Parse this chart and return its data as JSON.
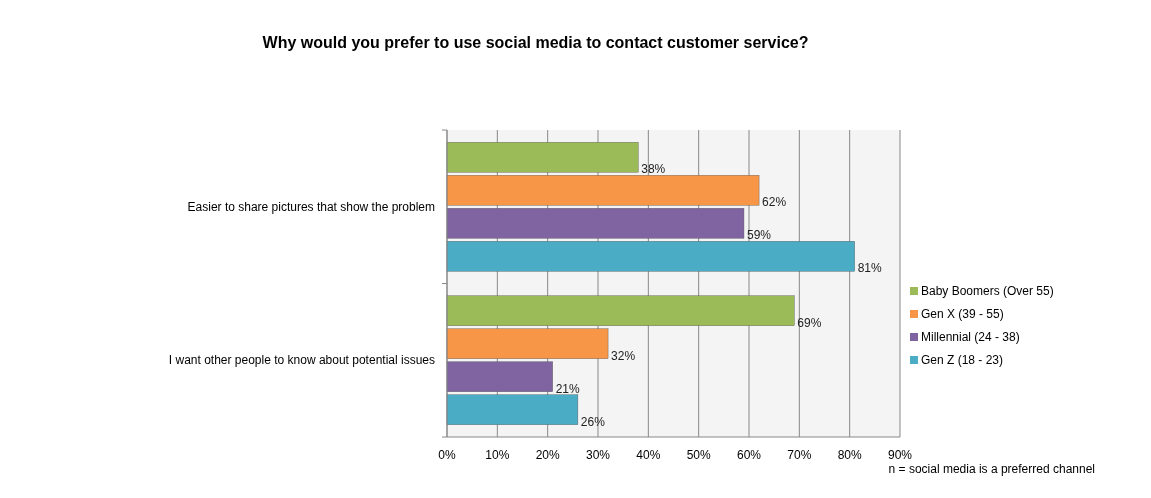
{
  "chart_data": {
    "type": "bar",
    "orientation": "horizontal",
    "title": "Why would you prefer to use social media to contact customer service?",
    "categories": [
      "Easier to share pictures that show the problem",
      "I want other people to know about potential issues"
    ],
    "series": [
      {
        "name": "Baby Boomers (Over 55)",
        "color": "#9bbb59",
        "values": [
          38,
          69
        ],
        "value_labels": [
          "38%",
          "69%"
        ]
      },
      {
        "name": "Gen X (39 - 55)",
        "color": "#f79646",
        "values": [
          62,
          32
        ],
        "value_labels": [
          "62%",
          "32%"
        ]
      },
      {
        "name": "Millennial (24 - 38)",
        "color": "#8064a2",
        "values": [
          59,
          21
        ],
        "value_labels": [
          "59%",
          "21%"
        ]
      },
      {
        "name": "Gen Z (18 - 23)",
        "color": "#4bacc6",
        "values": [
          81,
          26
        ],
        "value_labels": [
          "81%",
          "26%"
        ]
      }
    ],
    "xlim": [
      0,
      90
    ],
    "xticks": [
      {
        "value": 0,
        "label": "0%"
      },
      {
        "value": 10,
        "label": "10%"
      },
      {
        "value": 20,
        "label": "20%"
      },
      {
        "value": 30,
        "label": "30%"
      },
      {
        "value": 40,
        "label": "40%"
      },
      {
        "value": 50,
        "label": "50%"
      },
      {
        "value": 60,
        "label": "60%"
      },
      {
        "value": 70,
        "label": "70%"
      },
      {
        "value": 80,
        "label": "80%"
      },
      {
        "value": 90,
        "label": "90%"
      }
    ],
    "grid": "x",
    "legend": "right",
    "annotations": [
      "n = social media is a preferred channel"
    ]
  }
}
